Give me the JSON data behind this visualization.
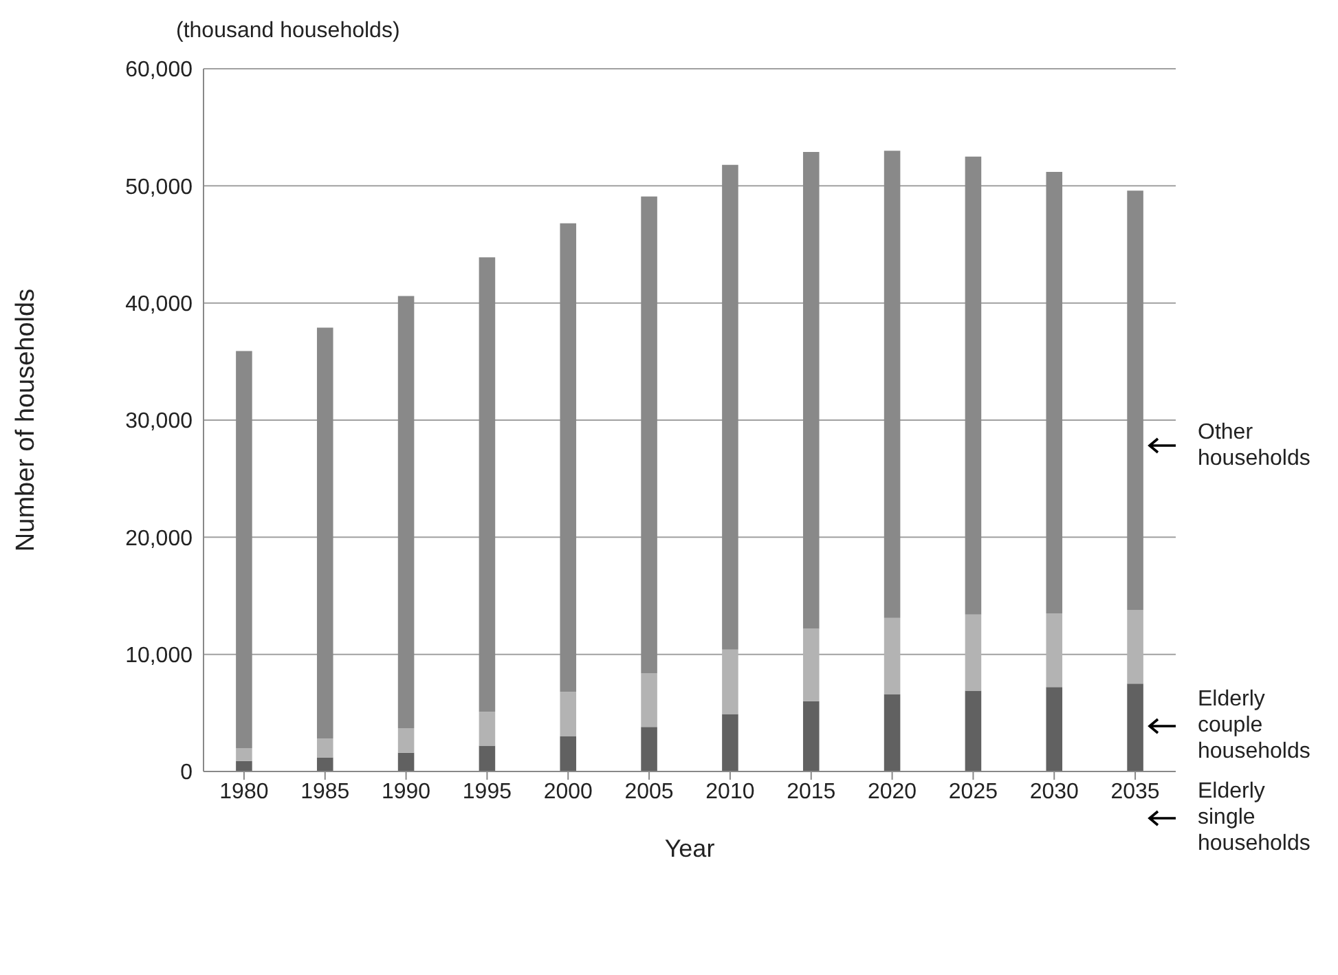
{
  "chart_data": {
    "type": "bar",
    "stacked": true,
    "xlabel": "Year",
    "ylabel": "Number of households",
    "annotations": [
      "(thousand households)"
    ],
    "categories": [
      "1980",
      "1985",
      "1990",
      "1995",
      "2000",
      "2005",
      "2010",
      "2015",
      "2020",
      "2025",
      "2030",
      "2035"
    ],
    "series": [
      {
        "name": "Elderly single households",
        "color": "#616161",
        "values": [
          900,
          1200,
          1600,
          2200,
          3000,
          3800,
          4900,
          6000,
          6600,
          6900,
          7200,
          7500
        ]
      },
      {
        "name": "Elderly couple households",
        "color": "#b3b3b3",
        "values": [
          1100,
          1600,
          2100,
          2900,
          3800,
          4600,
          5500,
          6200,
          6500,
          6500,
          6300,
          6300
        ]
      },
      {
        "name": "Other households",
        "color": "#898989",
        "values": [
          33900,
          35100,
          36900,
          38800,
          40000,
          40700,
          41400,
          40700,
          39900,
          39100,
          37700,
          35800
        ]
      }
    ],
    "ylim": [
      0,
      60000
    ],
    "yticks": [
      {
        "value": 0,
        "label": "0"
      },
      {
        "value": 10000,
        "label": "10,000"
      },
      {
        "value": 20000,
        "label": "20,000"
      },
      {
        "value": 30000,
        "label": "30,000"
      },
      {
        "value": 40000,
        "label": "40,000"
      },
      {
        "value": 50000,
        "label": "50,000"
      },
      {
        "value": 60000,
        "label": "60,000"
      }
    ],
    "grid": "y",
    "legend": "right"
  }
}
